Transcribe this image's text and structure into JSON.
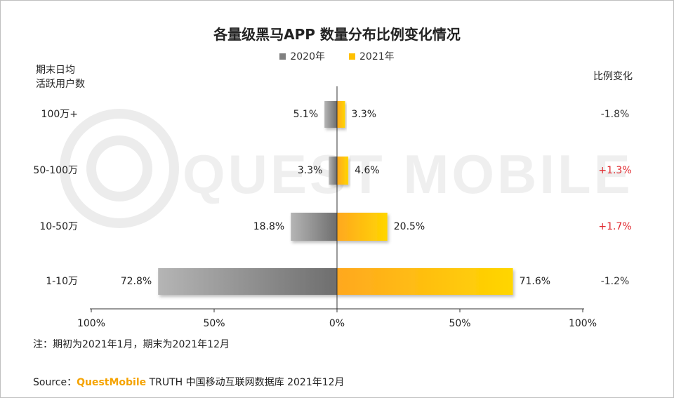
{
  "chart_data": {
    "type": "bar",
    "orientation": "horizontal-diverging",
    "title": "各量级黑马APP 数量分布比例变化情况",
    "ylabel_lines": [
      "期末日均",
      "活跃用户数"
    ],
    "right_label": "比例变化",
    "categories": [
      "100万+",
      "50-100万",
      "10-50万",
      "1-10万"
    ],
    "series": [
      {
        "name": "2020年",
        "values": [
          5.1,
          3.3,
          18.8,
          72.8
        ],
        "labels": [
          "5.1%",
          "3.3%",
          "18.8%",
          "72.8%"
        ],
        "color": "#808080",
        "side": "left"
      },
      {
        "name": "2021年",
        "values": [
          3.3,
          4.6,
          20.5,
          71.6
        ],
        "labels": [
          "3.3%",
          "4.6%",
          "20.5%",
          "71.6%"
        ],
        "color": "#ffc000",
        "side": "right"
      }
    ],
    "changes": [
      "-1.8%",
      "+1.3%",
      "+1.7%",
      "-1.2%"
    ],
    "change_colors": [
      "#333333",
      "#e0282e",
      "#e0282e",
      "#333333"
    ],
    "xlim": [
      -100,
      100
    ],
    "xticks": [
      "100%",
      "50%",
      "0%",
      "50%",
      "100%"
    ]
  },
  "note": "注：期初为2021年1月，期末为2021年12月",
  "source": {
    "prefix": "Source：",
    "brand": "QuestMobile",
    "rest": " TRUTH 中国移动互联网数据库 2021年12月"
  },
  "watermark": "QUEST MOBILE"
}
